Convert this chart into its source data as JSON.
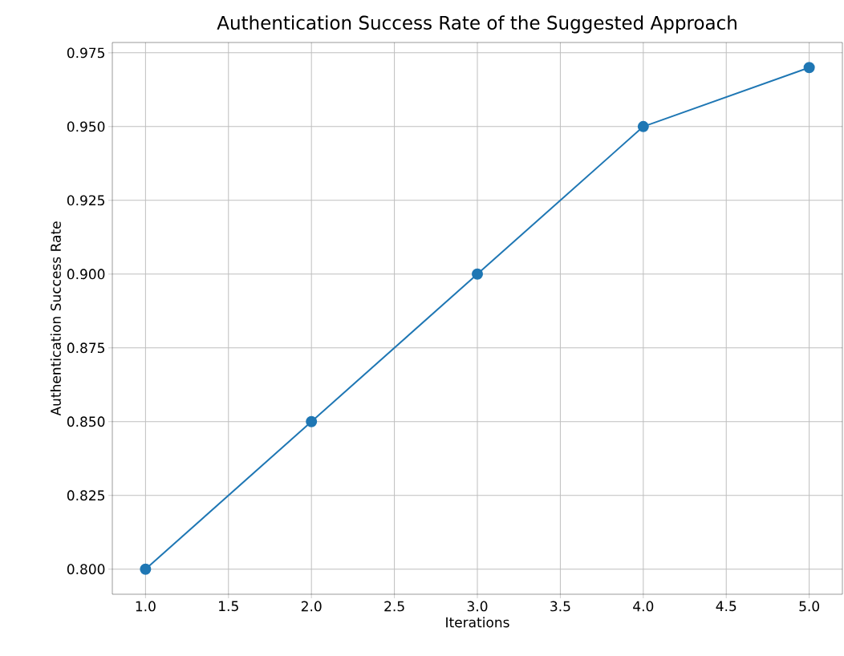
{
  "chart_data": {
    "type": "line",
    "title": "Authentication Success Rate of the Suggested Approach",
    "xlabel": "Iterations",
    "ylabel": "Authentication Success Rate",
    "x": [
      1,
      2,
      3,
      4,
      5
    ],
    "series": [
      {
        "color": "#1f77b4",
        "values": [
          0.8,
          0.85,
          0.9,
          0.95,
          0.97
        ]
      }
    ],
    "xlim": [
      0.8,
      5.2
    ],
    "ylim": [
      0.7915,
      0.9785
    ],
    "xticks": [
      {
        "value": 1,
        "label": "1.0"
      },
      1.5,
      {
        "value": 2,
        "label": "2.0"
      },
      2.5,
      {
        "value": 3,
        "label": "3.0"
      },
      3.5,
      {
        "value": 4,
        "label": "4.0"
      },
      4.5,
      {
        "value": 5,
        "label": "5.0"
      }
    ],
    "yticks": [
      {
        "value": 0.8,
        "label": "0.800"
      },
      {
        "value": 0.825,
        "label": "0.825"
      },
      {
        "value": 0.85,
        "label": "0.850"
      },
      {
        "value": 0.875,
        "label": "0.875"
      },
      {
        "value": 0.9,
        "label": "0.900"
      },
      {
        "value": 0.925,
        "label": "0.925"
      },
      {
        "value": 0.95,
        "label": "0.950"
      },
      {
        "value": 0.975,
        "label": "0.975"
      }
    ],
    "grid": true,
    "marker": "circle",
    "line_style": "solid"
  }
}
